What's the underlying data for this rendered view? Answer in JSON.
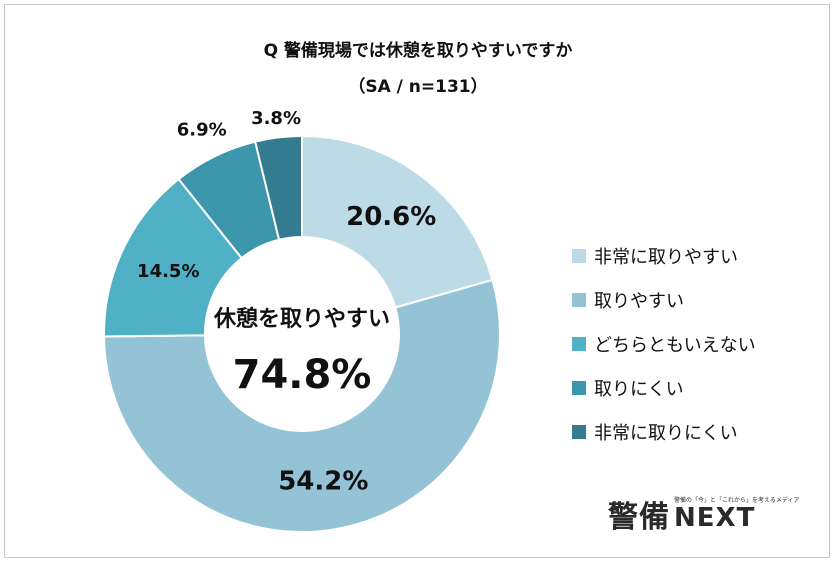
{
  "title": "Q 警備現場では休憩を取りやすいですか",
  "subtitle": "（SA / n=131）",
  "center": {
    "label": "休憩を取りやすい",
    "value": "74.8%"
  },
  "chart_data": {
    "type": "pie",
    "title": "Q 警備現場では休憩を取りやすいですか",
    "subtitle": "（SA / n=131）",
    "legend_position": "right",
    "categories": [
      "非常に取りやすい",
      "取りやすい",
      "どちらともいえない",
      "取りにくい",
      "非常に取りにくい"
    ],
    "values": [
      20.6,
      54.2,
      14.5,
      6.9,
      3.8
    ],
    "labels": [
      "20.6%",
      "54.2%",
      "14.5%",
      "6.9%",
      "3.8%"
    ],
    "colors": [
      "#bcdbe6",
      "#93c3d5",
      "#4fb0c6",
      "#3d97ac",
      "#337b8f"
    ],
    "donut": true
  },
  "logo": {
    "kanji": "警備",
    "tagline": "警備の「今」と「これから」を考えるメディア",
    "next": "NEXT"
  }
}
